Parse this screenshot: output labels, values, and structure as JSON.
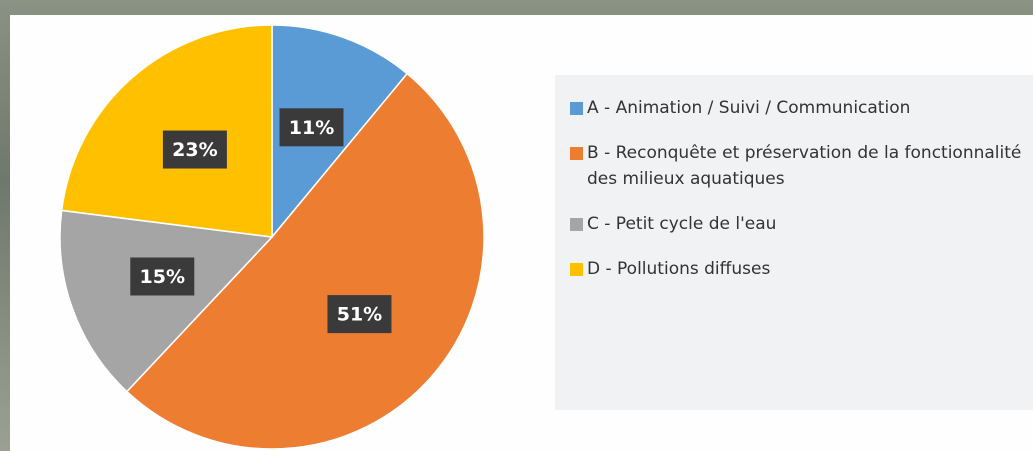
{
  "chart_data": {
    "type": "pie",
    "categories": [
      "A - Animation / Suivi / Communication",
      "B - Reconquête et préservation de la fonctionnalité des milieux aquatiques",
      "C - Petit cycle de l'eau",
      "D - Pollutions diffuses"
    ],
    "values": [
      11,
      51,
      15,
      23
    ],
    "value_labels": [
      "11%",
      "51%",
      "15%",
      "23%"
    ],
    "colors": [
      "#5b9bd5",
      "#ed7d31",
      "#a5a5a5",
      "#ffc000"
    ]
  }
}
